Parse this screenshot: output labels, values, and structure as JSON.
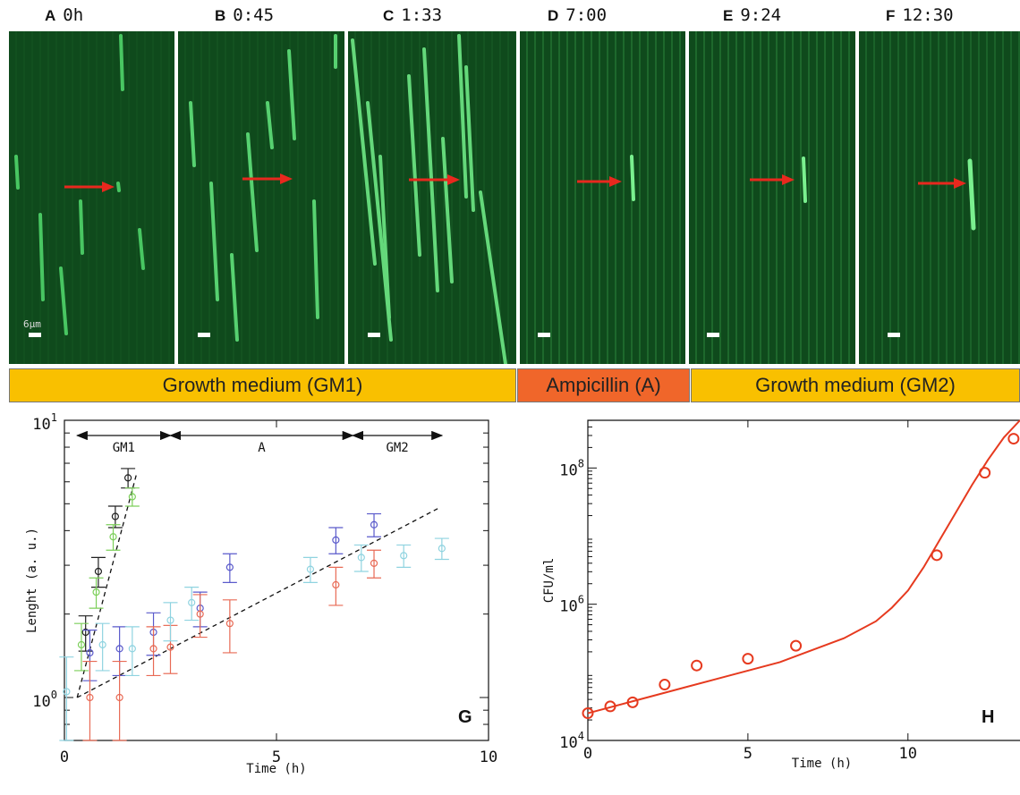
{
  "panels": [
    {
      "letter": "A",
      "time": "0h",
      "scale_text": "6µm"
    },
    {
      "letter": "B",
      "time": "0:45"
    },
    {
      "letter": "C",
      "time": "1:33"
    },
    {
      "letter": "D",
      "time": "7:00"
    },
    {
      "letter": "E",
      "time": "9:24"
    },
    {
      "letter": "F",
      "time": "12:30"
    }
  ],
  "bands": [
    {
      "label": "Growth medium (GM1)",
      "color": "#f9c000"
    },
    {
      "label": "Ampicillin (A)",
      "color": "#f0662a"
    },
    {
      "label": "Growth medium (GM2)",
      "color": "#f9c000"
    }
  ],
  "colors": {
    "arrow": "#e8281e",
    "micro_bg": "#0f4a1c",
    "fluor": "#5fe07a"
  },
  "chart_data": [
    {
      "type": "scatter",
      "panel_letter": "G",
      "xlabel": "Time (h)",
      "ylabel": "Lenght (a. u.)",
      "xlim": [
        0,
        10
      ],
      "ylim": [
        0.7,
        10
      ],
      "yscale": "log",
      "xticks": [
        "0",
        "5",
        "10"
      ],
      "yticks": [
        {
          "base": "10",
          "exp": "0",
          "value": 1
        },
        {
          "base": "10",
          "exp": "1",
          "value": 10
        }
      ],
      "phases": [
        {
          "label": "GM1",
          "x": [
            0.3,
            2.5
          ]
        },
        {
          "label": "A",
          "x": [
            2.5,
            6.8
          ]
        },
        {
          "label": "GM2",
          "x": [
            6.8,
            8.9
          ]
        }
      ],
      "fit_lines": [
        {
          "x": [
            0.3,
            1.7
          ],
          "y": [
            1.0,
            6.4
          ]
        },
        {
          "x": [
            0.3,
            8.8
          ],
          "y": [
            1.0,
            4.8
          ]
        }
      ],
      "series": [
        {
          "color": "#202020",
          "points": [
            [
              0.5,
              1.72,
              0.25
            ],
            [
              0.8,
              2.85,
              0.35
            ],
            [
              1.2,
              4.5,
              0.4
            ],
            [
              1.5,
              6.2,
              0.5
            ]
          ]
        },
        {
          "color": "#7ccf5a",
          "points": [
            [
              0.4,
              1.55,
              0.3
            ],
            [
              0.75,
              2.4,
              0.3
            ],
            [
              1.15,
              3.8,
              0.4
            ],
            [
              1.6,
              5.3,
              0.4
            ]
          ]
        },
        {
          "color": "#5a5acb",
          "points": [
            [
              0.6,
              1.45,
              0.3
            ],
            [
              1.3,
              1.5,
              0.3
            ],
            [
              2.1,
              1.72,
              0.3
            ],
            [
              3.2,
              2.1,
              0.3
            ],
            [
              3.9,
              2.95,
              0.35
            ],
            [
              6.4,
              3.7,
              0.4
            ],
            [
              7.3,
              4.2,
              0.4
            ]
          ]
        },
        {
          "color": "#e86a55",
          "points": [
            [
              0.6,
              1.0,
              0.35
            ],
            [
              1.3,
              1.0,
              0.35
            ],
            [
              2.1,
              1.5,
              0.3
            ],
            [
              2.5,
              1.52,
              0.3
            ],
            [
              3.2,
              2.0,
              0.35
            ],
            [
              3.9,
              1.85,
              0.4
            ],
            [
              6.4,
              2.55,
              0.4
            ],
            [
              7.3,
              3.05,
              0.35
            ]
          ]
        },
        {
          "color": "#8fd3e0",
          "points": [
            [
              0.05,
              1.05,
              0.35
            ],
            [
              0.9,
              1.55,
              0.3
            ],
            [
              1.6,
              1.5,
              0.3
            ],
            [
              2.5,
              1.9,
              0.3
            ],
            [
              3.0,
              2.2,
              0.3
            ],
            [
              5.8,
              2.9,
              0.3
            ],
            [
              7.0,
              3.2,
              0.35
            ],
            [
              8.0,
              3.25,
              0.3
            ],
            [
              8.9,
              3.45,
              0.3
            ]
          ]
        }
      ]
    },
    {
      "type": "scatter",
      "panel_letter": "H",
      "xlabel": "Time (h)",
      "ylabel": "CFU/ml",
      "xlim": [
        0,
        13.5
      ],
      "ylim": [
        4,
        8.7
      ],
      "yscale": "log",
      "xticks": [
        "0",
        "5",
        "10"
      ],
      "yticks": [
        {
          "base": "10",
          "exp": "4",
          "value": 4
        },
        {
          "base": "10",
          "exp": "6",
          "value": 6
        },
        {
          "base": "10",
          "exp": "8",
          "value": 8
        }
      ],
      "points_x": [
        0.0,
        0.7,
        1.4,
        2.4,
        3.4,
        5.0,
        6.5,
        10.9,
        12.4,
        13.3
      ],
      "points_y": [
        4.4,
        4.5,
        4.56,
        4.82,
        5.1,
        5.2,
        5.39,
        6.72,
        7.93,
        8.43
      ],
      "curve_x": [
        0,
        2,
        4,
        6,
        8,
        9,
        9.5,
        10,
        10.5,
        11,
        11.5,
        12,
        12.5,
        13,
        13.5
      ],
      "curve_y": [
        4.4,
        4.65,
        4.9,
        5.15,
        5.5,
        5.75,
        5.95,
        6.2,
        6.55,
        6.95,
        7.35,
        7.75,
        8.12,
        8.45,
        8.7
      ],
      "color": "#e63a1f"
    }
  ]
}
